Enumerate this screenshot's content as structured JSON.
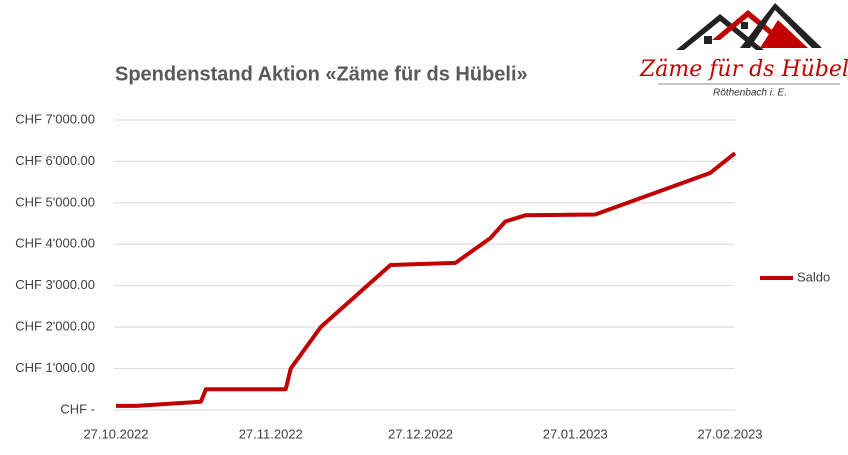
{
  "chart_data": {
    "type": "line",
    "title": "Spendenstand Aktion «Zäme für ds Hübeli»",
    "x": [
      "27.10.2022",
      "31.10.2022",
      "13.11.2022",
      "14.11.2022",
      "30.11.2022",
      "01.12.2022",
      "07.12.2022",
      "21.12.2022",
      "03.01.2023",
      "10.01.2023",
      "13.01.2023",
      "17.01.2023",
      "31.01.2023",
      "23.02.2023",
      "28.02.2023"
    ],
    "series": [
      {
        "name": "Saldo",
        "color": "#c00000",
        "values": [
          100,
          100,
          200,
          500,
          500,
          1000,
          2000,
          3500,
          3550,
          4150,
          4550,
          4700,
          4720,
          5720,
          6200
        ]
      }
    ],
    "xlim": [
      "27.10.2022",
      "28.02.2023"
    ],
    "xticks": [
      "27.10.2022",
      "27.11.2022",
      "27.12.2022",
      "27.01.2023",
      "27.02.2023"
    ],
    "ylim": [
      0,
      7000
    ],
    "yticks": [
      {
        "value": 0,
        "label": "CHF -"
      },
      {
        "value": 1000,
        "label": "CHF 1'000.00"
      },
      {
        "value": 2000,
        "label": "CHF 2'000.00"
      },
      {
        "value": 3000,
        "label": "CHF 3'000.00"
      },
      {
        "value": 4000,
        "label": "CHF 4'000.00"
      },
      {
        "value": 5000,
        "label": "CHF 5'000.00"
      },
      {
        "value": 6000,
        "label": "CHF 6'000.00"
      },
      {
        "value": 7000,
        "label": "CHF 7'000.00"
      }
    ],
    "grid": true,
    "legend": "right"
  },
  "logo": {
    "name": "Zäme für ds Hübeli",
    "place": "Röthenbach i. E."
  }
}
